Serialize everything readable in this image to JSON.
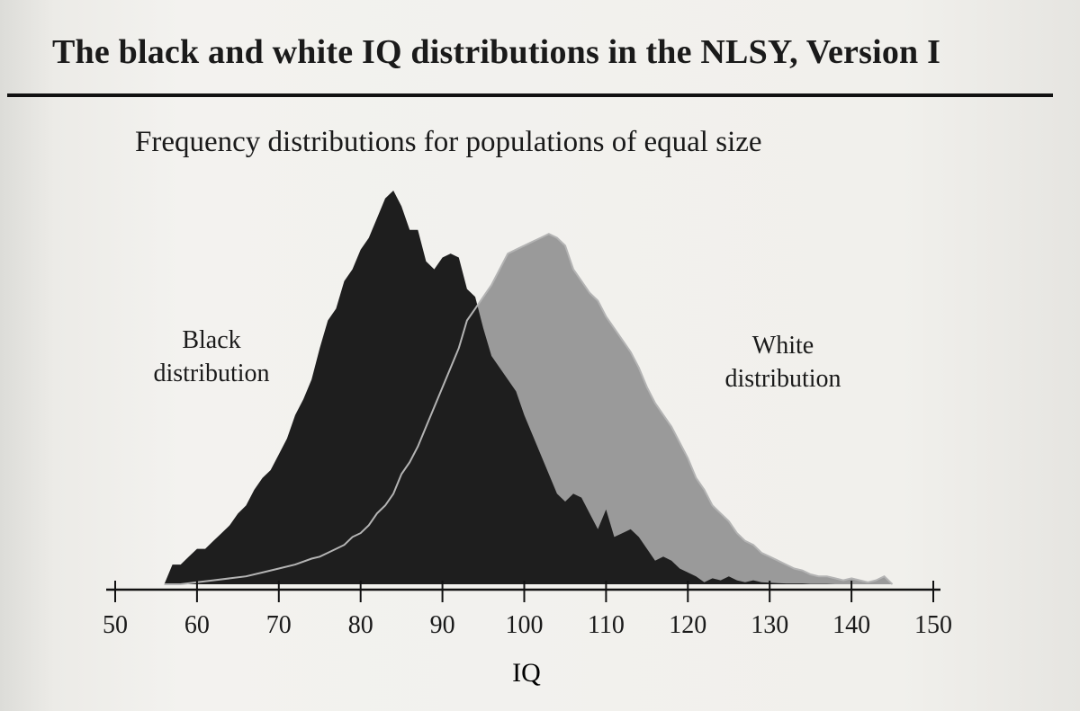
{
  "page": {
    "title": "The black and white IQ distributions in the NLSY, Version I",
    "subtitle": "Frequency distributions for populations of equal size",
    "colors": {
      "black_fill": "#1e1e1e",
      "white_fill": "#9a9a9a",
      "white_line": "#b4b4b4",
      "rule": "#111111"
    }
  },
  "chart_data": {
    "type": "area",
    "title": "The black and white IQ distributions in the NLSY, Version I",
    "subtitle": "Frequency distributions for populations of equal size",
    "xlabel": "IQ",
    "ylabel": "",
    "xlim": [
      50,
      150
    ],
    "ylim": [
      0,
      1
    ],
    "x_ticks": [
      50,
      60,
      70,
      80,
      90,
      100,
      110,
      120,
      130,
      140,
      150
    ],
    "x_tick_labels": [
      "50",
      "60",
      "70",
      "80",
      "90",
      "100",
      "110",
      "120",
      "130",
      "140",
      "150"
    ],
    "grid": false,
    "legend": "none",
    "series": [
      {
        "name": "Black distribution",
        "label_lines": [
          "Black",
          "distribution"
        ],
        "x": [
          56,
          57,
          58,
          59,
          60,
          61,
          62,
          63,
          64,
          65,
          66,
          67,
          68,
          69,
          70,
          71,
          72,
          73,
          74,
          75,
          76,
          77,
          78,
          79,
          80,
          81,
          82,
          83,
          84,
          85,
          86,
          87,
          88,
          89,
          90,
          91,
          92,
          93,
          94,
          95,
          96,
          97,
          98,
          99,
          100,
          101,
          102,
          103,
          104,
          105,
          106,
          107,
          108,
          109,
          110,
          111,
          112,
          113,
          114,
          115,
          116,
          117,
          118,
          119,
          120,
          121,
          122,
          123,
          124,
          125,
          126,
          127,
          128,
          129,
          130,
          131,
          132,
          133,
          134,
          135,
          136,
          137,
          138
        ],
        "values": [
          0,
          0.05,
          0.05,
          0.07,
          0.09,
          0.09,
          0.11,
          0.13,
          0.15,
          0.18,
          0.2,
          0.24,
          0.27,
          0.29,
          0.33,
          0.37,
          0.43,
          0.47,
          0.52,
          0.6,
          0.67,
          0.7,
          0.77,
          0.8,
          0.85,
          0.88,
          0.93,
          0.98,
          1.0,
          0.96,
          0.9,
          0.9,
          0.82,
          0.8,
          0.83,
          0.84,
          0.83,
          0.75,
          0.73,
          0.65,
          0.58,
          0.55,
          0.52,
          0.49,
          0.43,
          0.38,
          0.33,
          0.28,
          0.23,
          0.21,
          0.23,
          0.22,
          0.18,
          0.14,
          0.19,
          0.12,
          0.13,
          0.14,
          0.12,
          0.09,
          0.06,
          0.07,
          0.06,
          0.04,
          0.03,
          0.02,
          0.005,
          0.015,
          0.01,
          0.02,
          0.01,
          0.005,
          0.01,
          0.005,
          0.004,
          0.003,
          0.002,
          0.002,
          0.002,
          0.001,
          0.001,
          0.001,
          0
        ]
      },
      {
        "name": "White distribution",
        "label_lines": [
          "White",
          "distribution"
        ],
        "x": [
          56,
          58,
          60,
          62,
          64,
          66,
          68,
          70,
          72,
          74,
          75,
          76,
          77,
          78,
          79,
          80,
          81,
          82,
          83,
          84,
          85,
          86,
          87,
          88,
          89,
          90,
          91,
          92,
          93,
          94,
          95,
          96,
          97,
          98,
          99,
          100,
          101,
          102,
          103,
          104,
          105,
          106,
          107,
          108,
          109,
          110,
          111,
          112,
          113,
          114,
          115,
          116,
          117,
          118,
          119,
          120,
          121,
          122,
          123,
          124,
          125,
          126,
          127,
          128,
          129,
          130,
          131,
          132,
          133,
          134,
          135,
          136,
          137,
          138,
          139,
          140,
          141,
          142,
          143,
          144,
          145
        ],
        "values": [
          0,
          0,
          0.005,
          0.01,
          0.015,
          0.02,
          0.03,
          0.04,
          0.05,
          0.065,
          0.07,
          0.08,
          0.09,
          0.1,
          0.12,
          0.13,
          0.15,
          0.18,
          0.2,
          0.23,
          0.28,
          0.31,
          0.35,
          0.4,
          0.45,
          0.5,
          0.55,
          0.6,
          0.67,
          0.7,
          0.73,
          0.76,
          0.8,
          0.84,
          0.85,
          0.86,
          0.87,
          0.88,
          0.89,
          0.88,
          0.86,
          0.8,
          0.77,
          0.74,
          0.72,
          0.68,
          0.65,
          0.62,
          0.59,
          0.55,
          0.5,
          0.46,
          0.43,
          0.4,
          0.36,
          0.32,
          0.27,
          0.24,
          0.2,
          0.18,
          0.16,
          0.13,
          0.11,
          0.1,
          0.08,
          0.07,
          0.06,
          0.05,
          0.04,
          0.035,
          0.025,
          0.02,
          0.02,
          0.015,
          0.01,
          0.015,
          0.01,
          0.005,
          0.01,
          0.02,
          0
        ]
      }
    ]
  }
}
